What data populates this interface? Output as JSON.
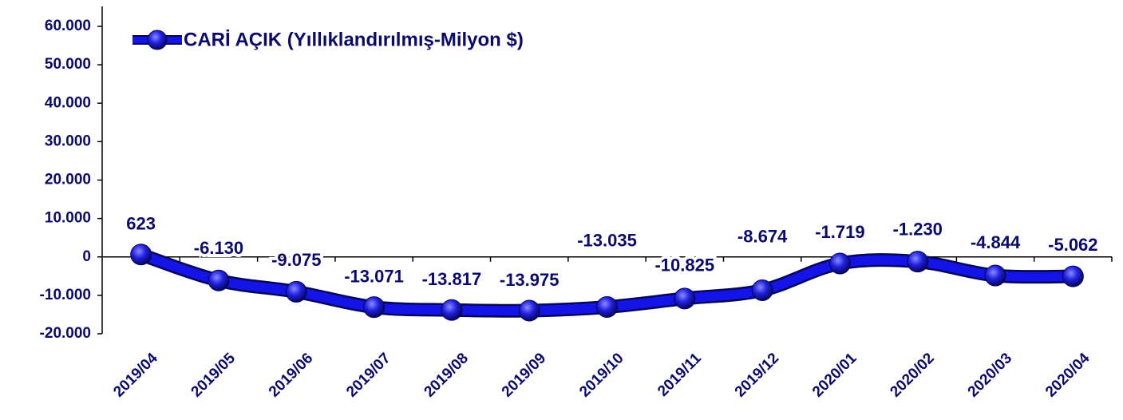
{
  "chart_data": {
    "type": "line",
    "categories": [
      "2019/04",
      "2019/05",
      "2019/06",
      "2019/07",
      "2019/08",
      "2019/09",
      "2019/10",
      "2019/11",
      "2019/12",
      "2020/01",
      "2020/02",
      "2020/03",
      "2020/04"
    ],
    "series": [
      {
        "name": "CARİ AÇIK (Yıllıklandırılmış-Milyon $)",
        "color": "#1414e6",
        "values": [
          623,
          -6130,
          -9075,
          -13071,
          -13817,
          -13975,
          -13035,
          -10825,
          -8674,
          -1719,
          -1230,
          -4844,
          -5062
        ],
        "value_labels": [
          "623",
          "-6.130",
          "-9.075",
          "-13.071",
          "-13.817",
          "-13.975",
          "-13.035",
          "-10.825",
          "-8.674",
          "-1.719",
          "-1.230",
          "-4.844",
          "-5.062"
        ]
      }
    ],
    "ylim": [
      -20000,
      60000
    ],
    "yticks": [
      {
        "value": -20000,
        "label": "-20.000"
      },
      {
        "value": -10000,
        "label": "-10.000"
      },
      0,
      {
        "value": 10000,
        "label": "10.000"
      },
      {
        "value": 20000,
        "label": "20.000"
      },
      {
        "value": 30000,
        "label": "30.000"
      },
      {
        "value": 40000,
        "label": "40.000"
      },
      {
        "value": 50000,
        "label": "50.000"
      },
      {
        "value": 60000,
        "label": "60.000"
      }
    ],
    "legend": "top-left"
  }
}
